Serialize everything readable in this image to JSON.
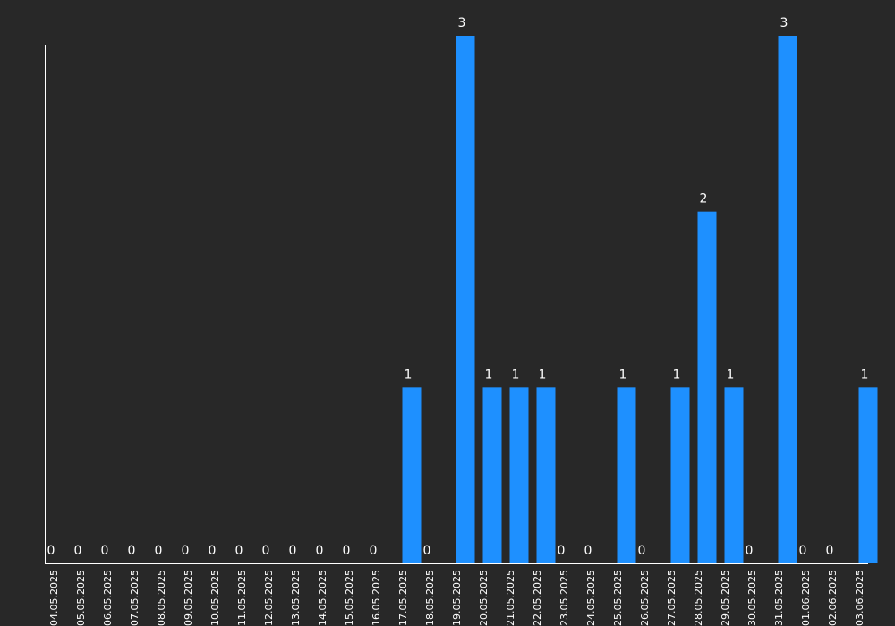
{
  "colors": {
    "background": "#282828",
    "bar": "#1e90ff",
    "axis": "#ffffff",
    "text": "#ffffff"
  },
  "chart_data": {
    "type": "bar",
    "title": "",
    "xlabel": "",
    "ylabel": "",
    "grid": false,
    "ylim": [
      0,
      3
    ],
    "categories": [
      "04.05.2025",
      "05.05.2025",
      "06.05.2025",
      "07.05.2025",
      "08.05.2025",
      "09.05.2025",
      "10.05.2025",
      "11.05.2025",
      "12.05.2025",
      "13.05.2025",
      "14.05.2025",
      "15.05.2025",
      "16.05.2025",
      "17.05.2025",
      "18.05.2025",
      "19.05.2025",
      "20.05.2025",
      "21.05.2025",
      "22.05.2025",
      "23.05.2025",
      "24.05.2025",
      "25.05.2025",
      "26.05.2025",
      "27.05.2025",
      "28.05.2025",
      "29.05.2025",
      "30.05.2025",
      "31.05.2025",
      "01.06.2025",
      "02.06.2025",
      "03.06.2025"
    ],
    "values": [
      0,
      0,
      0,
      0,
      0,
      0,
      0,
      0,
      0,
      0,
      0,
      0,
      0,
      1,
      0,
      3,
      1,
      1,
      1,
      0,
      0,
      1,
      0,
      1,
      2,
      1,
      0,
      3,
      0,
      0,
      1
    ],
    "data_labels": [
      "0",
      "0",
      "0",
      "0",
      "0",
      "0",
      "0",
      "0",
      "0",
      "0",
      "0",
      "0",
      "0",
      "1",
      "0",
      "3",
      "1",
      "1",
      "1",
      "0",
      "0",
      "1",
      "0",
      "1",
      "2",
      "1",
      "0",
      "3",
      "0",
      "0",
      "1"
    ]
  }
}
